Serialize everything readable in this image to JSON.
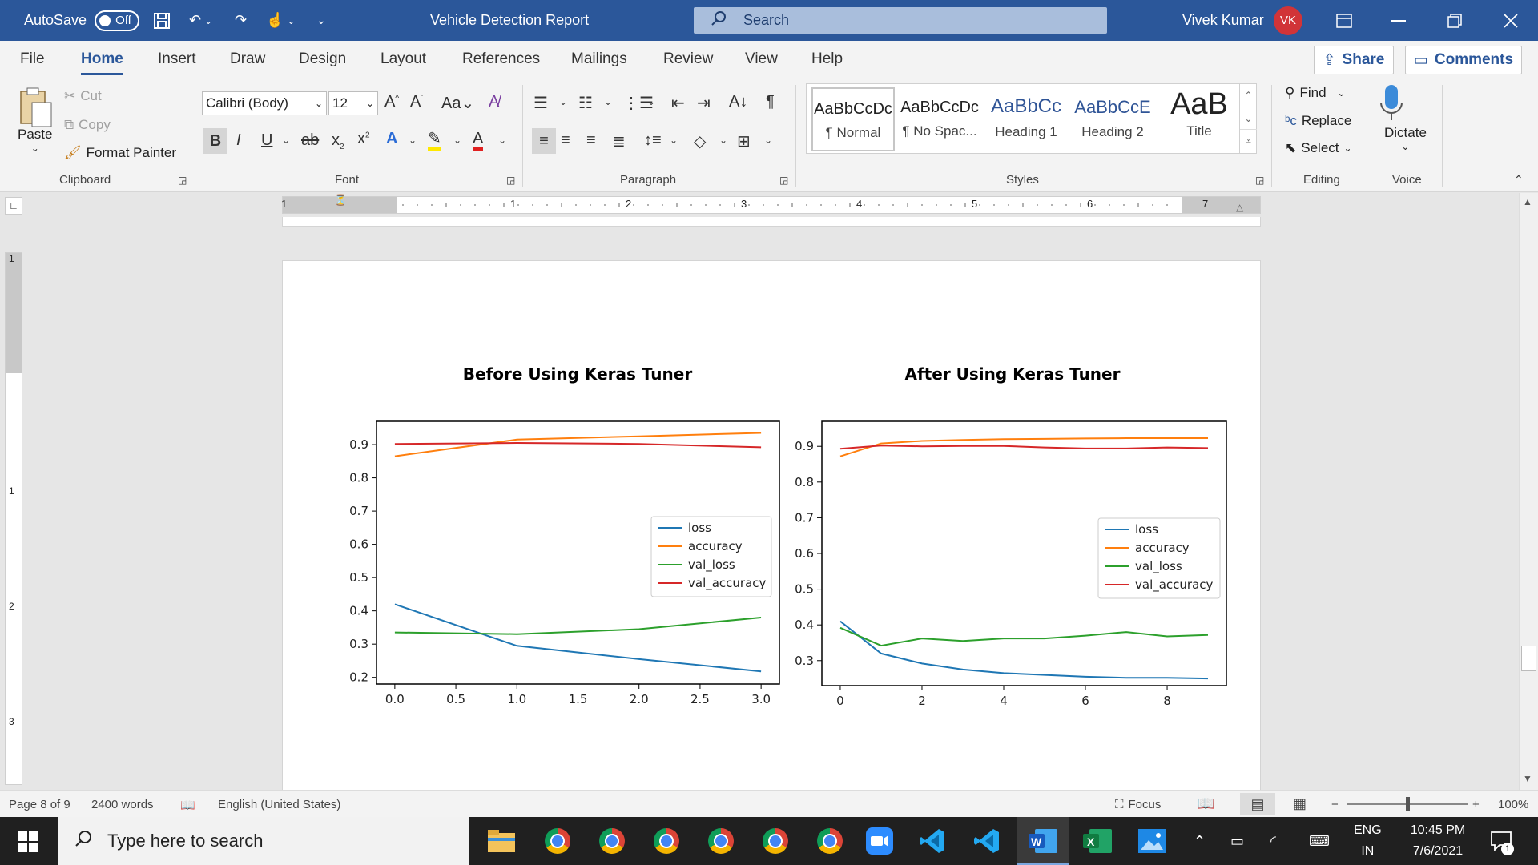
{
  "titlebar": {
    "autosave_label": "AutoSave",
    "autosave_state": "Off",
    "doc_title": "Vehicle Detection Report",
    "search_placeholder": "Search",
    "user_name": "Vivek Kumar",
    "user_initials": "VK"
  },
  "menu": {
    "tabs": [
      "File",
      "Home",
      "Insert",
      "Draw",
      "Design",
      "Layout",
      "References",
      "Mailings",
      "Review",
      "View",
      "Help"
    ],
    "active": "Home",
    "share_label": "Share",
    "comments_label": "Comments"
  },
  "ribbon": {
    "clipboard": {
      "paste": "Paste",
      "cut": "Cut",
      "copy": "Copy",
      "format_painter": "Format Painter",
      "label": "Clipboard"
    },
    "font": {
      "family": "Calibri (Body)",
      "size": "12",
      "label": "Font"
    },
    "paragraph": {
      "label": "Paragraph"
    },
    "styles": {
      "label": "Styles",
      "items": [
        {
          "preview": "AaBbCcDc",
          "name": "¶ Normal"
        },
        {
          "preview": "AaBbCcDc",
          "name": "¶ No Spac..."
        },
        {
          "preview": "AaBbCc",
          "name": "Heading 1"
        },
        {
          "preview": "AaBbCcE",
          "name": "Heading 2"
        },
        {
          "preview": "AaB",
          "name": "Title"
        }
      ]
    },
    "editing": {
      "find": "Find",
      "replace": "Replace",
      "select": "Select",
      "label": "Editing"
    },
    "voice": {
      "dictate": "Dictate",
      "label": "Voice"
    }
  },
  "ruler": {
    "numbers": [
      "1",
      "1",
      "2",
      "3",
      "4",
      "5",
      "6",
      "7"
    ],
    "vnumbers": [
      "1",
      "1",
      "2",
      "3"
    ]
  },
  "chart_data": [
    {
      "type": "line",
      "title": "Before Using Keras Tuner",
      "x": [
        0,
        1,
        2,
        3
      ],
      "xticks": [
        "0.0",
        "0.5",
        "1.0",
        "1.5",
        "2.0",
        "2.5",
        "3.0"
      ],
      "yticks": [
        "0.2",
        "0.3",
        "0.4",
        "0.5",
        "0.6",
        "0.7",
        "0.8",
        "0.9"
      ],
      "xlim": [
        -0.15,
        3.15
      ],
      "ylim": [
        0.18,
        0.97
      ],
      "legend_position": "center-right",
      "series": [
        {
          "name": "loss",
          "color": "#1f77b4",
          "values": [
            0.42,
            0.295,
            0.255,
            0.218
          ]
        },
        {
          "name": "accuracy",
          "color": "#ff7f0e",
          "values": [
            0.865,
            0.915,
            0.925,
            0.935
          ]
        },
        {
          "name": "val_loss",
          "color": "#2ca02c",
          "values": [
            0.335,
            0.33,
            0.345,
            0.38
          ]
        },
        {
          "name": "val_accuracy",
          "color": "#d62728",
          "values": [
            0.902,
            0.905,
            0.902,
            0.892
          ]
        }
      ]
    },
    {
      "type": "line",
      "title": "After Using Keras Tuner",
      "x": [
        0,
        1,
        2,
        3,
        4,
        5,
        6,
        7,
        8,
        9
      ],
      "xticks": [
        "0",
        "2",
        "4",
        "6",
        "8"
      ],
      "yticks": [
        "0.3",
        "0.4",
        "0.5",
        "0.6",
        "0.7",
        "0.8",
        "0.9"
      ],
      "xlim": [
        -0.45,
        9.45
      ],
      "ylim": [
        0.23,
        0.97
      ],
      "legend_position": "center-right",
      "series": [
        {
          "name": "loss",
          "color": "#1f77b4",
          "values": [
            0.41,
            0.32,
            0.292,
            0.275,
            0.265,
            0.26,
            0.255,
            0.252,
            0.252,
            0.25
          ]
        },
        {
          "name": "accuracy",
          "color": "#ff7f0e",
          "values": [
            0.872,
            0.908,
            0.915,
            0.918,
            0.92,
            0.921,
            0.922,
            0.923,
            0.923,
            0.923
          ]
        },
        {
          "name": "val_loss",
          "color": "#2ca02c",
          "values": [
            0.392,
            0.342,
            0.362,
            0.355,
            0.362,
            0.362,
            0.37,
            0.38,
            0.368,
            0.372
          ]
        },
        {
          "name": "val_accuracy",
          "color": "#d62728",
          "values": [
            0.893,
            0.902,
            0.9,
            0.901,
            0.901,
            0.897,
            0.894,
            0.894,
            0.897,
            0.895
          ]
        }
      ]
    }
  ],
  "status": {
    "page": "Page 8 of 9",
    "words": "2400 words",
    "language": "English (United States)",
    "focus": "Focus",
    "zoom": "100%"
  },
  "taskbar": {
    "search_placeholder": "Type here to search",
    "lang_top": "ENG",
    "lang_bottom": "IN",
    "time": "10:45 PM",
    "date": "7/6/2021",
    "notifications": "1"
  }
}
